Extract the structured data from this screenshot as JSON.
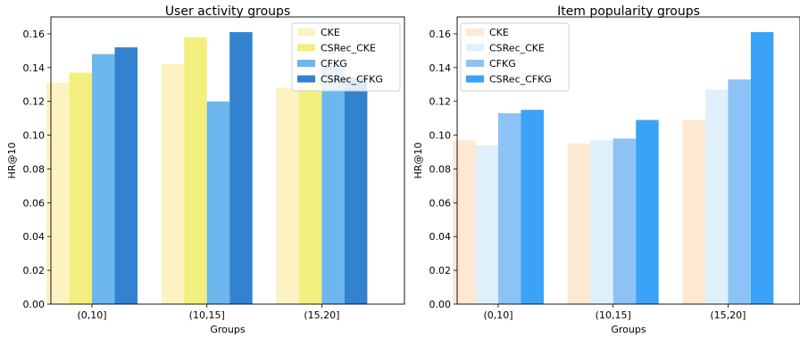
{
  "chart_data": [
    {
      "type": "bar",
      "title": "User activity groups",
      "xlabel": "Groups",
      "ylabel": "HR@10",
      "ylim": [
        0,
        0.17
      ],
      "yticks": [
        "0.00",
        "0.02",
        "0.04",
        "0.06",
        "0.08",
        "0.10",
        "0.12",
        "0.14",
        "0.16"
      ],
      "categories": [
        "(0,10]",
        "(10,15]",
        "(15,20]"
      ],
      "legend_position": "top-right",
      "grid": false,
      "series": [
        {
          "name": "CKE",
          "color": "#fdf3c2",
          "values": [
            0.131,
            0.142,
            0.128
          ]
        },
        {
          "name": "CSRec_CKE",
          "color": "#f2ef7e",
          "values": [
            0.137,
            0.158,
            0.134
          ]
        },
        {
          "name": "CFKG",
          "color": "#6cb7ee",
          "values": [
            0.148,
            0.12,
            0.141
          ]
        },
        {
          "name": "CSRec_CFKG",
          "color": "#3282d0",
          "values": [
            0.152,
            0.161,
            0.134
          ]
        }
      ]
    },
    {
      "type": "bar",
      "title": "Item popularity groups",
      "xlabel": "Groups",
      "ylabel": "HR@10",
      "ylim": [
        0,
        0.17
      ],
      "yticks": [
        "0.00",
        "0.02",
        "0.04",
        "0.06",
        "0.08",
        "0.10",
        "0.12",
        "0.14",
        "0.16"
      ],
      "categories": [
        "(0,10]",
        "(10,15]",
        "(15,20]"
      ],
      "legend_position": "top-left",
      "grid": false,
      "series": [
        {
          "name": "CKE",
          "color": "#fde8d4",
          "values": [
            0.097,
            0.095,
            0.109
          ]
        },
        {
          "name": "CSRec_CKE",
          "color": "#dff0fb",
          "values": [
            0.094,
            0.097,
            0.127
          ]
        },
        {
          "name": "CFKG",
          "color": "#8cc2f5",
          "values": [
            0.113,
            0.098,
            0.133
          ]
        },
        {
          "name": "CSRec_CFKG",
          "color": "#3aa3f7",
          "values": [
            0.115,
            0.109,
            0.161
          ]
        }
      ]
    }
  ]
}
